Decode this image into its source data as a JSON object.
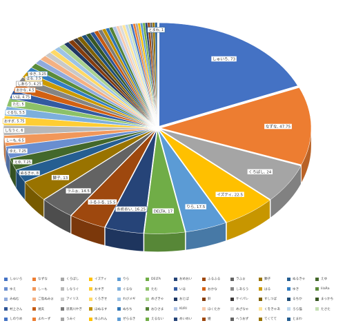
{
  "chart_data": {
    "type": "pie",
    "style": "3d-exploded",
    "title": "",
    "categories": [
      "しゅいろ",
      "なずな",
      "くろばし",
      "イズティ",
      "りら",
      "DELTA",
      "おめおい",
      "ふるふる",
      "ラふぉ",
      "獅子",
      "ぬるきゃ",
      "えゆ",
      "ゆえ",
      "しーも",
      "しなうぐ",
      "おすぎ",
      "ぐるな",
      "たむ",
      "いほ",
      "おかな",
      "しあらう",
      "はる",
      "ゆき",
      "lilaRa",
      "みぬむ",
      "ご島ぬみぉ",
      "アイリス",
      "くろぎせ",
      "れびメギ",
      "めざきゃ",
      "おとば",
      "鈴",
      "ケイパレ",
      "すしつば",
      "るちか",
      "まっかち",
      "村上さん",
      "湘夫",
      "思南川やぎ",
      "ほぬるす",
      "ぬちち",
      "おひさま",
      "KURI",
      "ほくたか",
      "めざなゃ",
      "くをきゃあ",
      "ろら猫",
      "たさた",
      "しのりめ",
      "よれーず",
      "うみぐ",
      "ゆふれん",
      "ぜらるき",
      "えるない",
      "めいめい",
      "姫",
      "へうおず",
      "てくてて",
      "とまわ"
    ],
    "values": [
      73,
      47.75,
      24,
      22.5,
      17.5,
      17,
      16.25,
      15.5,
      14.5,
      13,
      8,
      7.25,
      7.25,
      6.5,
      6,
      5.75,
      5.5,
      5,
      4.75,
      4.5,
      4.25,
      3.5,
      3.25,
      3,
      3,
      3,
      2.75,
      2.5,
      2.5,
      2.5,
      2.25,
      2.25,
      2,
      2,
      2,
      2,
      1.75,
      1.75,
      1.75,
      1.5,
      1.5,
      1.5,
      1.5,
      1.25,
      1.25,
      1.25,
      1.25,
      1,
      1,
      1,
      1,
      1,
      1,
      1,
      1,
      1,
      1,
      1,
      1
    ],
    "labels": [
      "しゅいろ, 73",
      "なずな, 47.75",
      "くろばし, 24",
      "イズティ, 22.5",
      "りら, 17.5",
      "DELTA, 17",
      "おめおい, 16.25",
      "ふるふる, 15.5",
      "ラふぉ, 14.5",
      "獅子, 13",
      "ぬるきゃ, 8",
      "えゆ, 7.25",
      "ゆえ, 7.25",
      "しーも, 6.5",
      "しなうぐ, 6",
      "おすぎ, 5.75",
      "ぐるな, 5.5",
      "たむ, 5",
      "いほ, 4.75",
      "おかな, 4.5",
      "しあらう, 4.25",
      "はる, 3.5",
      "ゆき, 3.25",
      "とまわ, 1"
    ],
    "colors": [
      "#4472C4",
      "#ED7D31",
      "#A5A5A5",
      "#FFC000",
      "#5B9BD5",
      "#70AD47",
      "#264478",
      "#9E480E",
      "#636363",
      "#997300",
      "#255E91",
      "#43682B",
      "#698ED0",
      "#F1975A",
      "#B7B7B7",
      "#FFCD33",
      "#7CAFDD",
      "#8CC168",
      "#335AA1",
      "#D26012",
      "#848484",
      "#CC9A00",
      "#327DC2",
      "#5A8B39",
      "#8FAADC",
      "#F4B183",
      "#C9C9C9",
      "#FFD966",
      "#9DC3E6",
      "#A9D18E",
      "#1F3864",
      "#843C0C",
      "#3B3838",
      "#7F6000",
      "#1F4E79",
      "#385723",
      "#2F5597",
      "#C55A11",
      "#7B7B7B",
      "#BF9000",
      "#2E75B6",
      "#548235",
      "#B4C7E7",
      "#F8CBAD",
      "#DBDBDB",
      "#FFE699",
      "#BDD7EE",
      "#C5E0B4",
      "#4472C4",
      "#ED7D31",
      "#A5A5A5",
      "#FFC000",
      "#5B9BD5",
      "#70AD47",
      "#264478",
      "#9E480E",
      "#636363",
      "#997300",
      "#255E91"
    ],
    "legend_position": "bottom"
  }
}
